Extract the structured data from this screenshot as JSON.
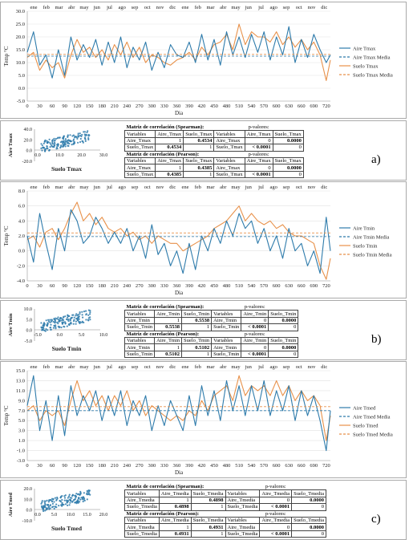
{
  "months": [
    "ene",
    "feb",
    "mar",
    "abr",
    "may",
    "jun",
    "jul",
    "ago",
    "sep",
    "oct",
    "nov",
    "dic",
    "ene",
    "feb",
    "mar",
    "abr",
    "may",
    "jun",
    "jul",
    "ago",
    "sep",
    "oct",
    "nov",
    "dic"
  ],
  "x_ticks": [
    "0",
    "30",
    "60",
    "90",
    "120",
    "150",
    "180",
    "210",
    "240",
    "270",
    "300",
    "330",
    "360",
    "390",
    "420",
    "450",
    "480",
    "510",
    "540",
    "570",
    "600",
    "630",
    "660",
    "690",
    "720"
  ],
  "xlabel": "Dia",
  "table_head_corr": "Variables",
  "table_head_pval": "p-valores:",
  "colors": {
    "air": "#2e7bab",
    "soil": "#e8914a",
    "air_mean": "#2e7bab",
    "soil_mean": "#e8914a"
  },
  "panels": [
    {
      "label": "a)",
      "ylabel": "Temp °C",
      "y_ticks": [
        "-5.0",
        "0.0",
        "5.0",
        "10.0",
        "15.0",
        "20.0",
        "25.0",
        "30.0"
      ],
      "y_range": [
        -5,
        30
      ],
      "legend": [
        "Aire Tmax",
        "Aire Tmax Media",
        "Suelo Tmax",
        "Suelo Tmax Media"
      ],
      "chart_data": {
        "type": "line",
        "x_range": [
          0,
          730
        ],
        "series": [
          {
            "name": "Aire Tmax",
            "x": [
              0,
              15,
              30,
              45,
              60,
              75,
              90,
              105,
              120,
              135,
              150,
              165,
              180,
              195,
              210,
              225,
              240,
              255,
              270,
              285,
              300,
              315,
              330,
              345,
              360,
              375,
              390,
              405,
              420,
              435,
              450,
              465,
              480,
              495,
              510,
              525,
              540,
              555,
              570,
              585,
              600,
              615,
              630,
              645,
              660,
              675,
              690,
              705,
              720,
              730
            ],
            "y": [
              14,
              22,
              9,
              13,
              4,
              15,
              5,
              20,
              11,
              17,
              12,
              19,
              9,
              18,
              10,
              20,
              8,
              16,
              11,
              18,
              7,
              14,
              8,
              17,
              13,
              12,
              18,
              10,
              21,
              11,
              19,
              9,
              22,
              13,
              20,
              12,
              21,
              14,
              22,
              11,
              20,
              13,
              24,
              10,
              19,
              12,
              21,
              15,
              10,
              13
            ]
          },
          {
            "name": "Aire Tmax Media",
            "x": [
              0,
              730
            ],
            "y": [
              12.5,
              12.5
            ]
          },
          {
            "name": "Suelo Tmax",
            "x": [
              0,
              15,
              30,
              45,
              60,
              75,
              90,
              105,
              120,
              135,
              150,
              165,
              180,
              195,
              210,
              225,
              240,
              255,
              270,
              285,
              300,
              315,
              330,
              345,
              360,
              375,
              390,
              405,
              420,
              435,
              450,
              465,
              480,
              495,
              510,
              525,
              540,
              555,
              570,
              585,
              600,
              615,
              630,
              645,
              660,
              675,
              690,
              705,
              720,
              730
            ],
            "y": [
              12,
              14,
              7,
              11,
              8,
              10,
              4,
              13,
              19,
              14,
              16,
              12,
              15,
              11,
              17,
              13,
              18,
              12,
              16,
              10,
              13,
              12,
              10,
              9,
              11,
              12,
              14,
              11,
              16,
              13,
              17,
              18,
              21,
              15,
              25,
              17,
              22,
              20,
              20,
              18,
              22,
              17,
              20,
              16,
              19,
              15,
              18,
              13,
              3,
              11
            ]
          },
          {
            "name": "Suelo Tmax Media",
            "x": [
              0,
              730
            ],
            "y": [
              13.2,
              13.2
            ]
          }
        ]
      },
      "scatter": {
        "xlabel": "Suelo Tmax",
        "ylabel": "Aire Tmax",
        "x_ticks": [
          "0.0",
          "10.0",
          "20.0",
          "30.0"
        ],
        "y_ticks": [
          "-20.0",
          "0.0",
          "20.0",
          "40.0"
        ]
      },
      "spearman": {
        "title": "Matriz de correlación (Spearman):",
        "vars": [
          "Aire_Tmax",
          "Suelo_Tmax"
        ],
        "r": [
          [
            "1",
            "0.4534"
          ],
          [
            "0.4534",
            "1"
          ]
        ],
        "p": [
          [
            "0",
            "0.0000"
          ],
          [
            "< 0.0001",
            "0"
          ]
        ]
      },
      "pearson": {
        "title": "Matriz de correlación (Pearson):",
        "vars": [
          "Aire_Tmax",
          "Suelo_Tmax"
        ],
        "r": [
          [
            "1",
            "0.4385"
          ],
          [
            "0.4385",
            "1"
          ]
        ],
        "p": [
          [
            "0",
            "0.0000"
          ],
          [
            "< 0.0001",
            "0"
          ]
        ]
      }
    },
    {
      "label": "b)",
      "ylabel": "Temp °C",
      "y_ticks": [
        "-4.0",
        "-2.0",
        "0.0",
        "2.0",
        "4.0",
        "6.0",
        "8.0"
      ],
      "y_range": [
        -4,
        8
      ],
      "legend": [
        "Aire Tmin",
        "Aire Tmin Media",
        "Suelo Tmin",
        "Suelo Tmin Media"
      ],
      "chart_data": {
        "type": "line",
        "x_range": [
          0,
          730
        ],
        "series": [
          {
            "name": "Aire Tmin",
            "x": [
              0,
              15,
              30,
              45,
              60,
              75,
              90,
              105,
              120,
              135,
              150,
              165,
              180,
              195,
              210,
              225,
              240,
              255,
              270,
              285,
              300,
              315,
              330,
              345,
              360,
              375,
              390,
              405,
              420,
              435,
              450,
              465,
              480,
              495,
              510,
              525,
              540,
              555,
              570,
              585,
              600,
              615,
              630,
              645,
              660,
              675,
              690,
              705,
              720,
              730
            ],
            "y": [
              2,
              -1.5,
              5,
              1,
              -2.5,
              3,
              0,
              5.5,
              4,
              1,
              2,
              4.5,
              3,
              1,
              2.5,
              1,
              3,
              0,
              2,
              -1,
              3.5,
              -0.5,
              1,
              -2,
              0,
              -3,
              1,
              -2.5,
              2,
              0,
              3,
              1,
              4,
              2,
              5,
              3,
              4,
              1,
              3,
              0,
              2,
              -1,
              3,
              0,
              1,
              -2,
              0,
              -3,
              4.5,
              0
            ]
          },
          {
            "name": "Aire Tmin Media",
            "x": [
              0,
              730
            ],
            "y": [
              1.9,
              1.9
            ]
          },
          {
            "name": "Suelo Tmin",
            "x": [
              0,
              15,
              30,
              45,
              60,
              75,
              90,
              105,
              120,
              135,
              150,
              165,
              180,
              195,
              210,
              225,
              240,
              255,
              270,
              285,
              300,
              315,
              330,
              345,
              360,
              375,
              390,
              405,
              420,
              435,
              450,
              465,
              480,
              495,
              510,
              525,
              540,
              555,
              570,
              585,
              600,
              615,
              630,
              645,
              660,
              675,
              690,
              705,
              720,
              730
            ],
            "y": [
              1.5,
              2,
              0.5,
              2.5,
              3,
              1.5,
              3,
              5,
              6.5,
              4,
              5,
              3.5,
              4.5,
              3,
              2.5,
              3,
              2,
              2.5,
              1.5,
              2,
              1,
              2,
              1.5,
              1,
              1,
              0,
              0.5,
              1,
              1.5,
              2,
              3,
              3.5,
              4,
              5,
              6,
              4,
              5,
              4,
              3.5,
              4,
              3,
              3.5,
              2.5,
              2,
              2,
              1.5,
              1,
              -2,
              -3.8,
              -1
            ]
          },
          {
            "name": "Suelo Tmin Media",
            "x": [
              0,
              730
            ],
            "y": [
              2.4,
              2.4
            ]
          }
        ]
      },
      "scatter": {
        "xlabel": "Suelo Tmin",
        "ylabel": "Aire Tmin",
        "x_ticks": [
          "-5.0",
          "0.0",
          "5.0",
          "10.0"
        ],
        "y_ticks": [
          "-5.0",
          "0.0",
          "5.0",
          "10.0"
        ]
      },
      "spearman": {
        "title": "Matriz de correlación (Spearman):",
        "vars": [
          "Aire_Tmin",
          "Suelo_Tmin"
        ],
        "r": [
          [
            "1",
            "0.5538"
          ],
          [
            "0.5538",
            "1"
          ]
        ],
        "p": [
          [
            "0",
            "0.0000"
          ],
          [
            "< 0.0001",
            "0"
          ]
        ]
      },
      "pearson": {
        "title": "Matriz de correlación (Pearson):",
        "vars": [
          "Aire_Tmin",
          "Suelo_Tmin"
        ],
        "r": [
          [
            "1",
            "0.5102"
          ],
          [
            "0.5102",
            "1"
          ]
        ],
        "p": [
          [
            "0",
            "0.0000"
          ],
          [
            "< 0.0001",
            "0"
          ]
        ]
      }
    },
    {
      "label": "c)",
      "ylabel": "Temp °C",
      "y_ticks": [
        "-3.0",
        "-1.0",
        "1.0",
        "3.0",
        "5.0",
        "7.0",
        "9.0",
        "11.0",
        "13.0",
        "15.0"
      ],
      "y_range": [
        -3,
        15
      ],
      "legend": [
        "Aire Tmed",
        "Aire Tmed Media",
        "Suelo Tmed",
        "Suelo Tmed Media"
      ],
      "chart_data": {
        "type": "line",
        "x_range": [
          0,
          730
        ],
        "series": [
          {
            "name": "Aire Tmed",
            "x": [
              0,
              15,
              30,
              45,
              60,
              75,
              90,
              105,
              120,
              135,
              150,
              165,
              180,
              195,
              210,
              225,
              240,
              255,
              270,
              285,
              300,
              315,
              330,
              345,
              360,
              375,
              390,
              405,
              420,
              435,
              450,
              465,
              480,
              495,
              510,
              525,
              540,
              555,
              570,
              585,
              600,
              615,
              630,
              645,
              660,
              675,
              690,
              705,
              720,
              730
            ],
            "y": [
              8,
              14,
              3,
              9,
              1,
              10,
              2,
              12,
              6,
              10,
              7,
              11,
              5,
              10,
              6,
              11,
              4,
              9,
              6,
              10,
              3,
              8,
              4,
              9,
              6,
              3,
              10,
              4,
              12,
              6,
              11,
              5,
              13,
              7,
              12,
              6,
              12,
              7,
              13,
              6,
              11,
              7,
              12,
              5,
              11,
              6,
              10,
              5,
              -1,
              7
            ]
          },
          {
            "name": "Aire Tmed Media",
            "x": [
              0,
              730
            ],
            "y": [
              7.0,
              7.0
            ]
          },
          {
            "name": "Suelo Tmed",
            "x": [
              0,
              15,
              30,
              45,
              60,
              75,
              90,
              105,
              120,
              135,
              150,
              165,
              180,
              195,
              210,
              225,
              240,
              255,
              270,
              285,
              300,
              315,
              330,
              345,
              360,
              375,
              390,
              405,
              420,
              435,
              450,
              465,
              480,
              495,
              510,
              525,
              540,
              555,
              570,
              585,
              600,
              615,
              630,
              645,
              660,
              675,
              690,
              705,
              720,
              730
            ],
            "y": [
              7,
              8,
              5,
              7,
              6,
              7,
              4,
              9,
              13,
              9,
              11,
              8,
              10,
              7,
              10,
              8,
              11,
              7,
              9,
              6,
              8,
              7,
              6,
              5,
              6,
              5,
              7,
              6,
              9,
              7,
              10,
              11,
              12,
              9,
              14,
              10,
              12,
              11,
              12,
              10,
              13,
              10,
              12,
              9,
              11,
              9,
              10,
              8,
              1,
              6
            ]
          },
          {
            "name": "Suelo Tmed Media",
            "x": [
              0,
              730
            ],
            "y": [
              7.8,
              7.8
            ]
          }
        ]
      },
      "scatter": {
        "xlabel": "Suelo Tmed",
        "ylabel": "Aire Tmed",
        "x_ticks": [
          "0.0",
          "5.0",
          "10.0",
          "15.0",
          "20.0"
        ],
        "y_ticks": [
          "-10.0",
          "0.0",
          "10.0",
          "20.0"
        ]
      },
      "spearman": {
        "title": "Matriz de correlación (Spearman):",
        "vars": [
          "Aire_Tmedia",
          "Suelo_Tmedia"
        ],
        "r": [
          [
            "1",
            "0.4898"
          ],
          [
            "0.4898",
            "1"
          ]
        ],
        "p": [
          [
            "0",
            "0.0000"
          ],
          [
            "< 0.0001",
            "0"
          ]
        ]
      },
      "pearson": {
        "title": "Matriz de correlación (Pearson):",
        "vars": [
          "Aire_Tmedia",
          "Suelo_Tmedia"
        ],
        "r": [
          [
            "1",
            "0.4931"
          ],
          [
            "0.4931",
            "1"
          ]
        ],
        "p": [
          [
            "0",
            "0.0000"
          ],
          [
            "< 0.0001",
            "0"
          ]
        ]
      }
    }
  ]
}
